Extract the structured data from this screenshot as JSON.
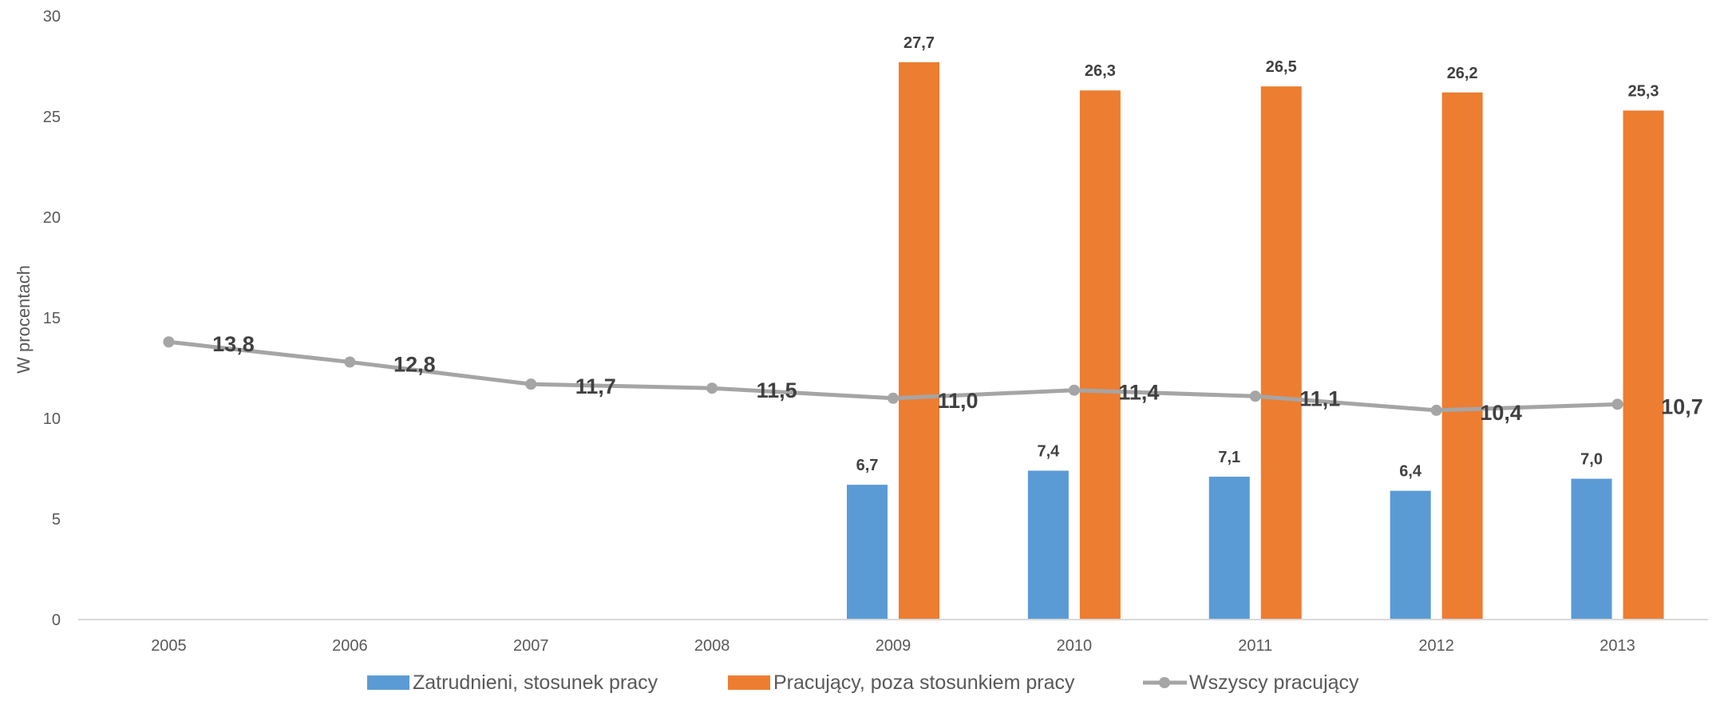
{
  "chart_data": {
    "type": "bar",
    "title": "",
    "xlabel": "",
    "ylabel": "W procentach",
    "ylim": [
      0,
      30
    ],
    "yticks": [
      "0",
      "5",
      "10",
      "15",
      "20",
      "25",
      "30"
    ],
    "categories": [
      "2005",
      "2006",
      "2007",
      "2008",
      "2009",
      "2010",
      "2011",
      "2012",
      "2013"
    ],
    "grid": false,
    "legend_position": "bottom",
    "series": [
      {
        "name": "Zatrudnieni, stosunek pracy",
        "type": "bar",
        "color": "#5B9BD5",
        "values": [
          null,
          null,
          null,
          null,
          6.7,
          7.4,
          7.1,
          6.4,
          7.0
        ],
        "labels": [
          "",
          "",
          "",
          "",
          "6,7",
          "7,4",
          "7,1",
          "6,4",
          "7,0"
        ]
      },
      {
        "name": "Pracujący, poza stosunkiem pracy",
        "type": "bar",
        "color": "#ED7D31",
        "values": [
          null,
          null,
          null,
          null,
          27.7,
          26.3,
          26.5,
          26.2,
          25.3
        ],
        "labels": [
          "",
          "",
          "",
          "",
          "27,7",
          "26,3",
          "26,5",
          "26,2",
          "25,3"
        ]
      },
      {
        "name": "Wszyscy pracujący",
        "type": "line",
        "color": "#A5A5A5",
        "values": [
          13.8,
          12.8,
          11.7,
          11.5,
          11.0,
          11.4,
          11.1,
          10.4,
          10.7
        ],
        "labels": [
          "13,8",
          "12,8",
          "11,7",
          "11,5",
          "11,0",
          "11,4",
          "11,1",
          "10,4",
          "10,7"
        ]
      }
    ]
  }
}
